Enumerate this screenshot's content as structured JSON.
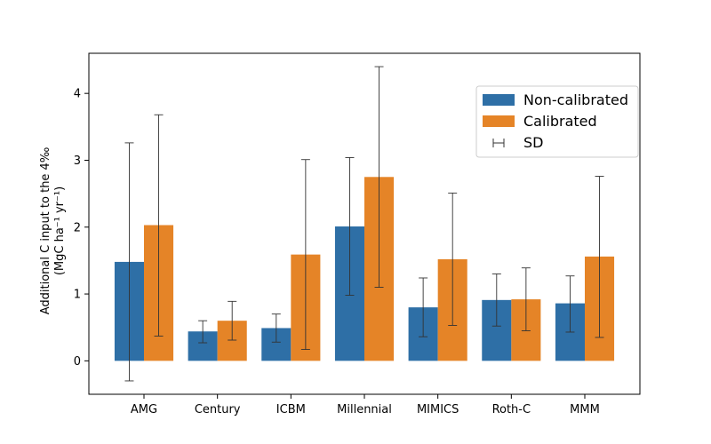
{
  "chart_data": {
    "type": "bar",
    "categories": [
      "AMG",
      "Century",
      "ICBM",
      "Millennial",
      "MIMICS",
      "Roth-C",
      "MMM"
    ],
    "series": [
      {
        "name": "Non-calibrated",
        "color": "#2e6fa6",
        "values": [
          1.48,
          0.44,
          0.49,
          2.01,
          0.8,
          0.91,
          0.86
        ],
        "err_low": [
          -0.3,
          0.27,
          0.28,
          0.98,
          0.36,
          0.52,
          0.43
        ],
        "err_high": [
          3.26,
          0.6,
          0.7,
          3.04,
          1.24,
          1.3,
          1.27
        ]
      },
      {
        "name": "Calibrated",
        "color": "#e58427",
        "values": [
          2.03,
          0.6,
          1.59,
          2.75,
          1.52,
          0.92,
          1.56
        ],
        "err_low": [
          0.37,
          0.31,
          0.17,
          1.1,
          0.53,
          0.45,
          0.35
        ],
        "err_high": [
          3.68,
          0.89,
          3.01,
          4.4,
          2.51,
          1.39,
          2.76
        ]
      }
    ],
    "error_bar_label": "SD",
    "ylabel_line1": "Additional C input to the 4‰",
    "ylabel_line2": "(MgC ha⁻¹ yr⁻¹)",
    "xlabel": "",
    "ylim": [
      -0.5,
      4.6
    ],
    "yticks": [
      0,
      1,
      2,
      3,
      4
    ],
    "legend_position": "upper-right",
    "grid": false
  }
}
